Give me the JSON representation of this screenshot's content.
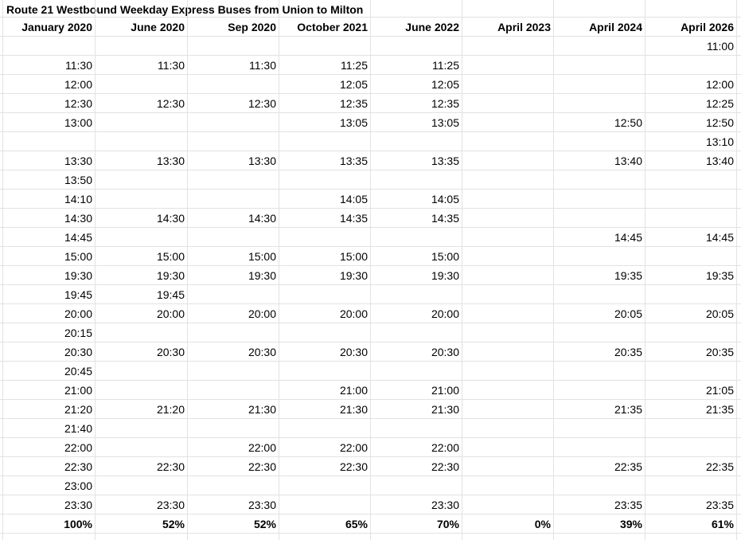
{
  "title": "Route 21 Westbound Weekday Express Buses from Union to Milton",
  "headers": [
    "January 2020",
    "June 2020",
    "Sep 2020",
    "October 2021",
    "June 2022",
    "April 2023",
    "April 2024",
    "April 2026"
  ],
  "rows": [
    [
      "",
      "",
      "",
      "",
      "",
      "",
      "",
      "11:00"
    ],
    [
      "11:30",
      "11:30",
      "11:30",
      "11:25",
      "11:25",
      "",
      "",
      ""
    ],
    [
      "12:00",
      "",
      "",
      "12:05",
      "12:05",
      "",
      "",
      "12:00"
    ],
    [
      "12:30",
      "12:30",
      "12:30",
      "12:35",
      "12:35",
      "",
      "",
      "12:25"
    ],
    [
      "13:00",
      "",
      "",
      "13:05",
      "13:05",
      "",
      "12:50",
      "12:50"
    ],
    [
      "",
      "",
      "",
      "",
      "",
      "",
      "",
      "13:10"
    ],
    [
      "13:30",
      "13:30",
      "13:30",
      "13:35",
      "13:35",
      "",
      "13:40",
      "13:40"
    ],
    [
      "13:50",
      "",
      "",
      "",
      "",
      "",
      "",
      ""
    ],
    [
      "14:10",
      "",
      "",
      "14:05",
      "14:05",
      "",
      "",
      ""
    ],
    [
      "14:30",
      "14:30",
      "14:30",
      "14:35",
      "14:35",
      "",
      "",
      ""
    ],
    [
      "14:45",
      "",
      "",
      "",
      "",
      "",
      "14:45",
      "14:45"
    ],
    [
      "15:00",
      "15:00",
      "15:00",
      "15:00",
      "15:00",
      "",
      "",
      ""
    ],
    [
      "19:30",
      "19:30",
      "19:30",
      "19:30",
      "19:30",
      "",
      "19:35",
      "19:35"
    ],
    [
      "19:45",
      "19:45",
      "",
      "",
      "",
      "",
      "",
      ""
    ],
    [
      "20:00",
      "20:00",
      "20:00",
      "20:00",
      "20:00",
      "",
      "20:05",
      "20:05"
    ],
    [
      "20:15",
      "",
      "",
      "",
      "",
      "",
      "",
      ""
    ],
    [
      "20:30",
      "20:30",
      "20:30",
      "20:30",
      "20:30",
      "",
      "20:35",
      "20:35"
    ],
    [
      "20:45",
      "",
      "",
      "",
      "",
      "",
      "",
      ""
    ],
    [
      "21:00",
      "",
      "",
      "21:00",
      "21:00",
      "",
      "",
      "21:05"
    ],
    [
      "21:20",
      "21:20",
      "21:30",
      "21:30",
      "21:30",
      "",
      "21:35",
      "21:35"
    ],
    [
      "21:40",
      "",
      "",
      "",
      "",
      "",
      "",
      ""
    ],
    [
      "22:00",
      "",
      "22:00",
      "22:00",
      "22:00",
      "",
      "",
      ""
    ],
    [
      "22:30",
      "22:30",
      "22:30",
      "22:30",
      "22:30",
      "",
      "22:35",
      "22:35"
    ],
    [
      "23:00",
      "",
      "",
      "",
      "",
      "",
      "",
      ""
    ],
    [
      "23:30",
      "23:30",
      "23:30",
      "",
      "23:30",
      "",
      "23:35",
      "23:35"
    ]
  ],
  "totals": [
    "100%",
    "52%",
    "52%",
    "65%",
    "70%",
    "0%",
    "39%",
    "61%"
  ],
  "colors": {
    "gridline": "#e2e2e2",
    "text": "#000000"
  }
}
